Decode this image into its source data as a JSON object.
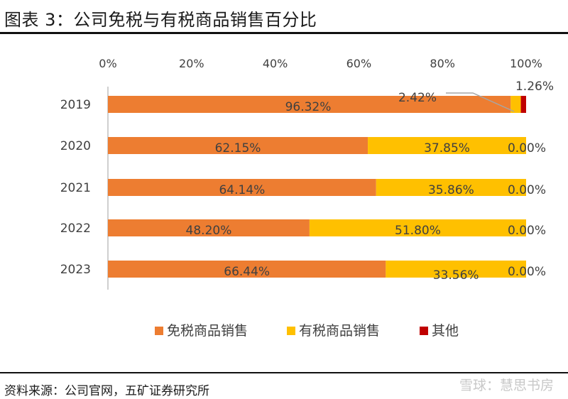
{
  "page": {
    "title": "图表 3：公司免税与有税商品销售百分比",
    "source": "资料来源：公司官网，五矿证券研究所",
    "watermark": "雪球：慧思书房"
  },
  "chart_data": {
    "type": "bar",
    "orientation": "horizontal",
    "stacked": true,
    "categories": [
      "2019",
      "2020",
      "2021",
      "2022",
      "2023"
    ],
    "x_ticks": [
      "0%",
      "20%",
      "40%",
      "60%",
      "80%",
      "100%"
    ],
    "xlim": [
      0,
      100
    ],
    "series": [
      {
        "name": "免税商品销售",
        "color": "#ED7D31",
        "values": [
          96.32,
          62.15,
          64.14,
          48.2,
          66.44
        ],
        "labels": [
          "96.32%",
          "62.15%",
          "64.14%",
          "48.20%",
          "66.44%"
        ]
      },
      {
        "name": "有税商品销售",
        "color": "#FFC000",
        "values": [
          2.42,
          37.85,
          35.86,
          51.8,
          33.56
        ],
        "labels": [
          "2.42%",
          "37.85%",
          "35.86%",
          "51.80%",
          "33.56%"
        ]
      },
      {
        "name": "其他",
        "color": "#C00000",
        "values": [
          1.26,
          0.0,
          0.0,
          0.0,
          0.0
        ],
        "labels": [
          "1.26%",
          "0.00%",
          "0.00%",
          "0.00%",
          "0.00%"
        ]
      }
    ],
    "legend_position": "bottom",
    "grid": false
  }
}
